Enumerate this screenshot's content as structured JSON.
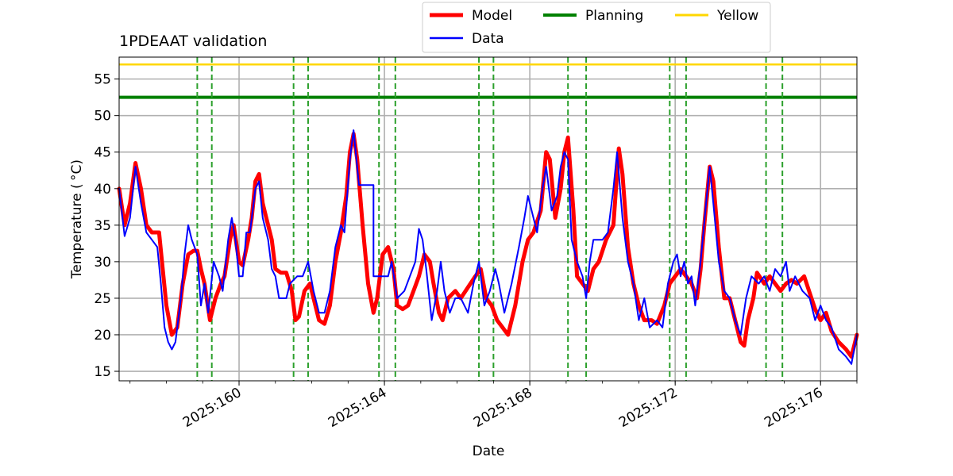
{
  "chart_data": {
    "type": "line",
    "title": "1PDEAAT validation",
    "xlabel": "Date",
    "ylabel": "Temperature ($^\\circ$C)",
    "ylabel_display": "Temperature ( °C)",
    "x_unit": "day of year 2025",
    "xlim": [
      156.7,
      177.0
    ],
    "ylim": [
      13.7,
      58.0
    ],
    "x_ticks": [
      {
        "value": 160,
        "label": "2025:160"
      },
      {
        "value": 164,
        "label": "2025:164"
      },
      {
        "value": 168,
        "label": "2025:168"
      },
      {
        "value": 172,
        "label": "2025:172"
      },
      {
        "value": 176,
        "label": "2025:176"
      }
    ],
    "y_ticks": [
      15,
      20,
      25,
      30,
      35,
      40,
      45,
      50,
      55
    ],
    "grid": true,
    "legend": {
      "placement": "top-center above axes",
      "columns": 3
    },
    "limits": [
      {
        "name": "Planning",
        "value": 52.5,
        "color": "#008000"
      },
      {
        "name": "Yellow",
        "value": 57.0,
        "color": "#ffd700"
      }
    ],
    "vlines": [
      158.85,
      159.25,
      161.5,
      161.9,
      163.85,
      164.3,
      166.6,
      167.0,
      169.05,
      169.55,
      171.85,
      172.3,
      174.5,
      174.95
    ],
    "vline_color": "#2ca02c",
    "series": [
      {
        "name": "Model",
        "color": "#ff0000",
        "points": [
          [
            156.7,
            40
          ],
          [
            156.85,
            35
          ],
          [
            157.0,
            38
          ],
          [
            157.15,
            43.5
          ],
          [
            157.3,
            40
          ],
          [
            157.45,
            35
          ],
          [
            157.6,
            34
          ],
          [
            157.8,
            34
          ],
          [
            157.9,
            29
          ],
          [
            158.0,
            24
          ],
          [
            158.15,
            20
          ],
          [
            158.3,
            21
          ],
          [
            158.45,
            27
          ],
          [
            158.6,
            31
          ],
          [
            158.75,
            31.5
          ],
          [
            158.85,
            31.5
          ],
          [
            158.95,
            29
          ],
          [
            159.05,
            27
          ],
          [
            159.2,
            22
          ],
          [
            159.35,
            25
          ],
          [
            159.5,
            27
          ],
          [
            159.6,
            28
          ],
          [
            159.75,
            33
          ],
          [
            159.85,
            35
          ],
          [
            160.0,
            30
          ],
          [
            160.1,
            29.5
          ],
          [
            160.25,
            33
          ],
          [
            160.35,
            36
          ],
          [
            160.45,
            41
          ],
          [
            160.55,
            42
          ],
          [
            160.65,
            38
          ],
          [
            160.75,
            36
          ],
          [
            160.9,
            33
          ],
          [
            161.0,
            29
          ],
          [
            161.15,
            28.5
          ],
          [
            161.3,
            28.5
          ],
          [
            161.45,
            26
          ],
          [
            161.55,
            22
          ],
          [
            161.65,
            22.5
          ],
          [
            161.8,
            26
          ],
          [
            161.95,
            27
          ],
          [
            162.05,
            25
          ],
          [
            162.2,
            22
          ],
          [
            162.35,
            21.5
          ],
          [
            162.5,
            24
          ],
          [
            162.65,
            30
          ],
          [
            162.8,
            34
          ],
          [
            162.95,
            39
          ],
          [
            163.05,
            45
          ],
          [
            163.15,
            47.5
          ],
          [
            163.25,
            44
          ],
          [
            163.4,
            35
          ],
          [
            163.55,
            27
          ],
          [
            163.7,
            23
          ],
          [
            163.8,
            25
          ],
          [
            163.95,
            31
          ],
          [
            164.1,
            32
          ],
          [
            164.25,
            29
          ],
          [
            164.35,
            24
          ],
          [
            164.5,
            23.5
          ],
          [
            164.65,
            24
          ],
          [
            164.8,
            26
          ],
          [
            164.95,
            28
          ],
          [
            165.1,
            31
          ],
          [
            165.25,
            30
          ],
          [
            165.35,
            27
          ],
          [
            165.5,
            23
          ],
          [
            165.6,
            22
          ],
          [
            165.75,
            25
          ],
          [
            165.95,
            26
          ],
          [
            166.1,
            25
          ],
          [
            166.3,
            26.5
          ],
          [
            166.5,
            28
          ],
          [
            166.65,
            29
          ],
          [
            166.8,
            25
          ],
          [
            166.95,
            24
          ],
          [
            167.1,
            22
          ],
          [
            167.25,
            21
          ],
          [
            167.4,
            20
          ],
          [
            167.6,
            24
          ],
          [
            167.8,
            30
          ],
          [
            167.95,
            33
          ],
          [
            168.1,
            34
          ],
          [
            168.3,
            37
          ],
          [
            168.45,
            45
          ],
          [
            168.55,
            44
          ],
          [
            168.7,
            36
          ],
          [
            168.85,
            40
          ],
          [
            168.95,
            45
          ],
          [
            169.05,
            47
          ],
          [
            169.2,
            37
          ],
          [
            169.3,
            28
          ],
          [
            169.45,
            27
          ],
          [
            169.6,
            26
          ],
          [
            169.75,
            29
          ],
          [
            169.9,
            30
          ],
          [
            170.1,
            33
          ],
          [
            170.3,
            35
          ],
          [
            170.45,
            45.5
          ],
          [
            170.55,
            42
          ],
          [
            170.7,
            32
          ],
          [
            170.85,
            27
          ],
          [
            171.0,
            24
          ],
          [
            171.15,
            22
          ],
          [
            171.35,
            22
          ],
          [
            171.5,
            21.5
          ],
          [
            171.7,
            24
          ],
          [
            171.85,
            27
          ],
          [
            172.0,
            28
          ],
          [
            172.15,
            29
          ],
          [
            172.3,
            28
          ],
          [
            172.45,
            27
          ],
          [
            172.6,
            25
          ],
          [
            172.7,
            29
          ],
          [
            172.8,
            35
          ],
          [
            172.95,
            43
          ],
          [
            173.05,
            41
          ],
          [
            173.2,
            32
          ],
          [
            173.35,
            25
          ],
          [
            173.5,
            25
          ],
          [
            173.65,
            22
          ],
          [
            173.8,
            19
          ],
          [
            173.9,
            18.5
          ],
          [
            174.0,
            22
          ],
          [
            174.15,
            25
          ],
          [
            174.25,
            28.5
          ],
          [
            174.45,
            27
          ],
          [
            174.6,
            28
          ],
          [
            174.75,
            27
          ],
          [
            174.9,
            26
          ],
          [
            175.05,
            27
          ],
          [
            175.2,
            27.5
          ],
          [
            175.35,
            27
          ],
          [
            175.55,
            28
          ],
          [
            175.75,
            25
          ],
          [
            175.85,
            23.5
          ],
          [
            176.0,
            22
          ],
          [
            176.15,
            23
          ],
          [
            176.3,
            20.5
          ],
          [
            176.5,
            19
          ],
          [
            176.7,
            18
          ],
          [
            176.85,
            17
          ],
          [
            177.0,
            20
          ]
        ]
      },
      {
        "name": "Data",
        "color": "#0000ff",
        "points": [
          [
            156.7,
            40
          ],
          [
            156.85,
            33.5
          ],
          [
            157.0,
            36
          ],
          [
            157.15,
            43
          ],
          [
            157.3,
            38
          ],
          [
            157.45,
            34
          ],
          [
            157.6,
            33
          ],
          [
            157.75,
            32
          ],
          [
            157.85,
            27
          ],
          [
            157.95,
            21
          ],
          [
            158.05,
            19
          ],
          [
            158.15,
            18
          ],
          [
            158.25,
            19
          ],
          [
            158.4,
            25
          ],
          [
            158.5,
            31
          ],
          [
            158.6,
            35
          ],
          [
            158.7,
            33
          ],
          [
            158.85,
            31
          ],
          [
            158.95,
            24
          ],
          [
            159.05,
            27
          ],
          [
            159.15,
            23
          ],
          [
            159.3,
            30
          ],
          [
            159.45,
            28
          ],
          [
            159.55,
            26
          ],
          [
            159.7,
            33
          ],
          [
            159.8,
            36
          ],
          [
            159.9,
            33
          ],
          [
            160.0,
            28
          ],
          [
            160.1,
            28
          ],
          [
            160.2,
            34
          ],
          [
            160.3,
            34
          ],
          [
            160.45,
            40
          ],
          [
            160.55,
            41
          ],
          [
            160.65,
            36
          ],
          [
            160.8,
            33
          ],
          [
            160.9,
            29
          ],
          [
            161.0,
            28
          ],
          [
            161.1,
            25
          ],
          [
            161.3,
            25
          ],
          [
            161.4,
            27
          ],
          [
            161.6,
            28
          ],
          [
            161.75,
            28
          ],
          [
            161.9,
            30
          ],
          [
            162.05,
            26
          ],
          [
            162.2,
            23
          ],
          [
            162.35,
            23
          ],
          [
            162.5,
            26
          ],
          [
            162.65,
            32
          ],
          [
            162.8,
            35
          ],
          [
            162.9,
            34
          ],
          [
            163.05,
            44
          ],
          [
            163.15,
            48
          ],
          [
            163.3,
            40.5
          ],
          [
            163.7,
            40.5
          ],
          [
            163.7,
            28
          ],
          [
            164.1,
            28
          ],
          [
            164.2,
            30
          ],
          [
            164.35,
            25
          ],
          [
            164.55,
            26
          ],
          [
            164.7,
            28
          ],
          [
            164.85,
            30
          ],
          [
            164.95,
            34.5
          ],
          [
            165.05,
            33
          ],
          [
            165.15,
            29
          ],
          [
            165.3,
            22
          ],
          [
            165.45,
            26
          ],
          [
            165.55,
            30
          ],
          [
            165.65,
            26
          ],
          [
            165.8,
            23
          ],
          [
            165.95,
            25
          ],
          [
            166.1,
            25
          ],
          [
            166.3,
            23
          ],
          [
            166.45,
            27
          ],
          [
            166.6,
            30
          ],
          [
            166.75,
            24
          ],
          [
            166.9,
            26
          ],
          [
            167.05,
            29
          ],
          [
            167.15,
            27
          ],
          [
            167.3,
            23
          ],
          [
            167.5,
            27
          ],
          [
            167.7,
            32
          ],
          [
            167.85,
            36
          ],
          [
            167.95,
            39
          ],
          [
            168.05,
            37
          ],
          [
            168.2,
            34
          ],
          [
            168.35,
            40
          ],
          [
            168.45,
            43
          ],
          [
            168.6,
            37
          ],
          [
            168.75,
            39
          ],
          [
            168.85,
            43
          ],
          [
            168.95,
            45
          ],
          [
            169.05,
            44
          ],
          [
            169.15,
            33
          ],
          [
            169.3,
            30
          ],
          [
            169.45,
            28
          ],
          [
            169.55,
            25
          ],
          [
            169.65,
            30
          ],
          [
            169.75,
            33
          ],
          [
            170.0,
            33
          ],
          [
            170.15,
            34
          ],
          [
            170.3,
            40
          ],
          [
            170.4,
            45
          ],
          [
            170.55,
            36
          ],
          [
            170.7,
            30
          ],
          [
            170.85,
            27
          ],
          [
            171.0,
            22
          ],
          [
            171.15,
            25
          ],
          [
            171.3,
            21
          ],
          [
            171.5,
            22
          ],
          [
            171.65,
            21
          ],
          [
            171.8,
            27
          ],
          [
            171.95,
            30
          ],
          [
            172.05,
            31
          ],
          [
            172.15,
            28
          ],
          [
            172.25,
            30
          ],
          [
            172.35,
            27
          ],
          [
            172.45,
            28
          ],
          [
            172.55,
            24
          ],
          [
            172.7,
            30
          ],
          [
            172.85,
            38
          ],
          [
            172.95,
            43
          ],
          [
            173.05,
            38
          ],
          [
            173.2,
            30
          ],
          [
            173.35,
            26
          ],
          [
            173.5,
            25
          ],
          [
            173.65,
            22
          ],
          [
            173.8,
            20
          ],
          [
            173.95,
            25
          ],
          [
            174.1,
            28
          ],
          [
            174.3,
            27
          ],
          [
            174.45,
            28
          ],
          [
            174.6,
            26
          ],
          [
            174.75,
            29
          ],
          [
            174.9,
            28
          ],
          [
            175.05,
            30
          ],
          [
            175.15,
            26
          ],
          [
            175.3,
            28
          ],
          [
            175.5,
            26
          ],
          [
            175.7,
            25
          ],
          [
            175.85,
            22
          ],
          [
            176.0,
            24
          ],
          [
            176.15,
            22
          ],
          [
            176.3,
            21
          ],
          [
            176.5,
            18
          ],
          [
            176.7,
            17
          ],
          [
            176.85,
            16
          ],
          [
            177.0,
            20
          ]
        ]
      }
    ]
  }
}
